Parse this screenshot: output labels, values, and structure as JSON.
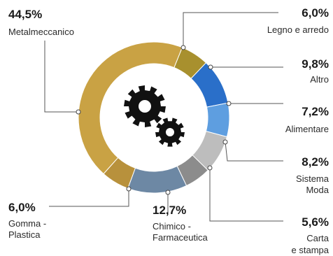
{
  "chart_data": {
    "type": "pie",
    "style": "donut",
    "title": "",
    "slices": [
      {
        "value": 6.0,
        "pct_text": "6,0%",
        "label": [
          "Legno e arredo"
        ],
        "color": "#a8902e"
      },
      {
        "value": 9.8,
        "pct_text": "9,8%",
        "label": [
          "Altro"
        ],
        "color": "#2a6fc9"
      },
      {
        "value": 7.2,
        "pct_text": "7,2%",
        "label": [
          "Alimentare"
        ],
        "color": "#5e9ee0"
      },
      {
        "value": 8.2,
        "pct_text": "8,2%",
        "label": [
          "Sistema",
          "Moda"
        ],
        "color": "#bdbdbd"
      },
      {
        "value": 5.6,
        "pct_text": "5,6%",
        "label": [
          "Carta",
          "e stampa"
        ],
        "color": "#8c8c8c"
      },
      {
        "value": 12.7,
        "pct_text": "12,7%",
        "label": [
          "Chimico -",
          "Farmaceutica"
        ],
        "color": "#6d88a4"
      },
      {
        "value": 6.0,
        "pct_text": "6,0%",
        "label": [
          "Gomma -",
          "Plastica"
        ],
        "color": "#b8913c"
      },
      {
        "value": 44.5,
        "pct_text": "44,5%",
        "label": [
          "Metalmeccanico"
        ],
        "color": "#c9a244"
      }
    ]
  },
  "center_icon": "gears-icon"
}
